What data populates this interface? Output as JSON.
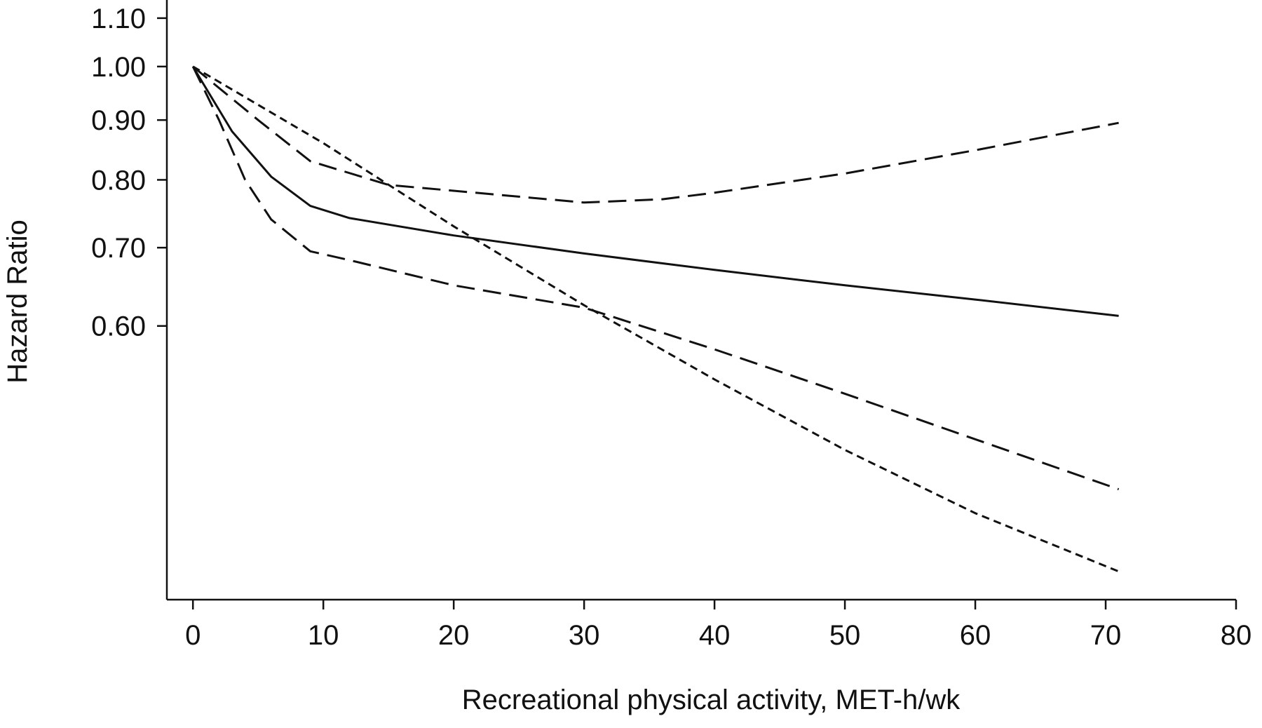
{
  "chart_data": {
    "type": "line",
    "xlabel": "Recreational physical activity, MET-h/wk",
    "ylabel": "Hazard Ratio",
    "xlim": [
      -2,
      80
    ],
    "ylim": [
      0.35,
      1.14
    ],
    "yscale": "log",
    "xticks": [
      0,
      10,
      20,
      30,
      40,
      50,
      60,
      70,
      80
    ],
    "xtick_labels": [
      "0",
      "10",
      "20",
      "30",
      "40",
      "50",
      "60",
      "70",
      "80"
    ],
    "yticks": [
      0.6,
      0.7,
      0.8,
      0.9,
      1.0,
      1.1
    ],
    "ytick_labels": [
      "0.60",
      "0.70",
      "0.80",
      "0.90",
      "1.00",
      "1.10"
    ],
    "grid": false,
    "legend": "none",
    "series": [
      {
        "style": "solid",
        "x": [
          0,
          3,
          6,
          9,
          12,
          20,
          30,
          40,
          50,
          60,
          71
        ],
        "y": [
          1.0,
          0.88,
          0.805,
          0.76,
          0.742,
          0.717,
          0.692,
          0.67,
          0.65,
          0.632,
          0.612
        ]
      },
      {
        "style": "long-dash",
        "x": [
          0,
          2,
          4,
          6,
          9,
          12,
          20,
          30,
          40,
          50,
          60,
          71
        ],
        "y": [
          1.0,
          0.9,
          0.8,
          0.74,
          0.695,
          0.683,
          0.65,
          0.622,
          0.573,
          0.525,
          0.48,
          0.435
        ]
      },
      {
        "style": "long-dash",
        "x": [
          0,
          5,
          9,
          15,
          20,
          25,
          30,
          36,
          40,
          50,
          60,
          71
        ],
        "y": [
          1.0,
          0.9,
          0.83,
          0.792,
          0.783,
          0.774,
          0.765,
          0.77,
          0.78,
          0.81,
          0.848,
          0.895
        ]
      },
      {
        "style": "short-dash",
        "x": [
          0,
          10,
          20,
          30,
          40,
          50,
          60,
          71
        ],
        "y": [
          1.0,
          0.86,
          0.73,
          0.625,
          0.54,
          0.47,
          0.415,
          0.37
        ]
      }
    ]
  }
}
